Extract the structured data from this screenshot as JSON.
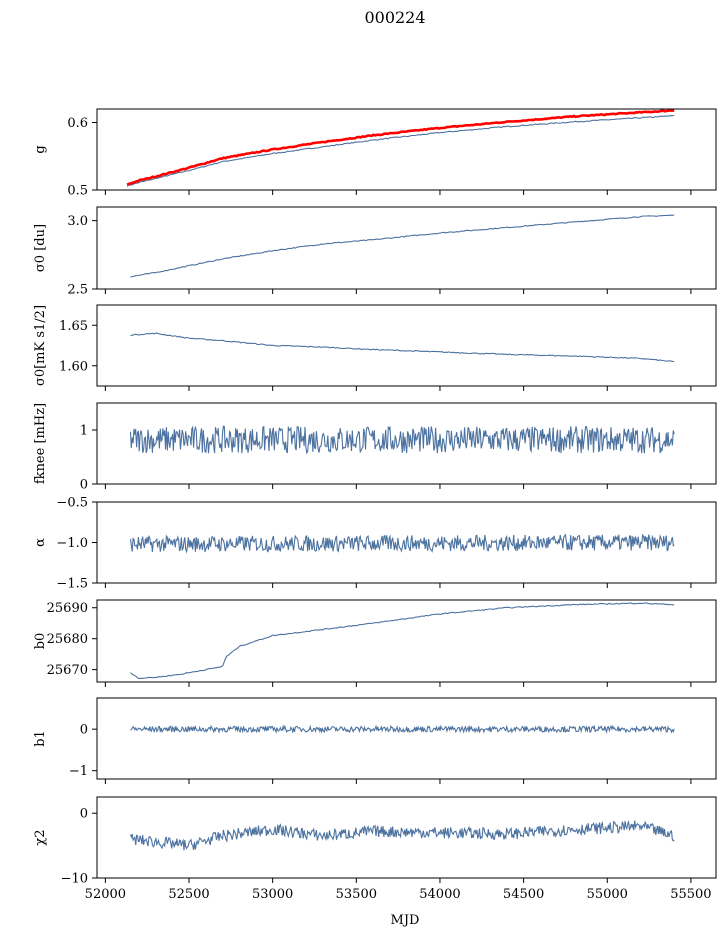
{
  "figure": {
    "title": "000224",
    "xlabel": "MJD",
    "series_color": "#4c72a0",
    "reference_color": "#ff0000"
  },
  "chart_data": [
    {
      "type": "line",
      "ylabel": "g",
      "xlim": [
        51950,
        55650
      ],
      "ylim": [
        0.5,
        0.62
      ],
      "yticks": [
        0.5,
        0.6
      ],
      "ytick_labels": [
        "0.5",
        "0.6"
      ],
      "series": [
        {
          "x": [
            52130,
            52200,
            52300,
            52500,
            52700,
            53000,
            53300,
            53600,
            54000,
            54400,
            54800,
            55200,
            55400
          ],
          "y": [
            0.506,
            0.511,
            0.517,
            0.529,
            0.542,
            0.554,
            0.564,
            0.574,
            0.585,
            0.594,
            0.601,
            0.607,
            0.61
          ]
        },
        {
          "x": [
            52130,
            52200,
            52300,
            52500,
            52700,
            53000,
            53300,
            53600,
            54000,
            54400,
            54800,
            55200,
            55400
          ],
          "y": [
            0.508,
            0.514,
            0.52,
            0.533,
            0.547,
            0.56,
            0.571,
            0.581,
            0.592,
            0.601,
            0.609,
            0.615,
            0.618
          ]
        }
      ]
    },
    {
      "type": "line",
      "ylabel": "σ0 [du]",
      "xlim": [
        51950,
        55650
      ],
      "ylim": [
        2.5,
        3.1
      ],
      "yticks": [
        2.5,
        3.0
      ],
      "ytick_labels": [
        "2.5",
        "3.0"
      ],
      "series": [
        {
          "x": [
            52150,
            52300,
            52500,
            52700,
            53000,
            53300,
            53600,
            54000,
            54400,
            54800,
            55200,
            55400
          ],
          "y": [
            2.59,
            2.62,
            2.67,
            2.72,
            2.78,
            2.83,
            2.86,
            2.91,
            2.95,
            2.99,
            3.03,
            3.04
          ]
        }
      ]
    },
    {
      "type": "line",
      "ylabel": "σ0[mK s1/2]",
      "xlim": [
        51950,
        55650
      ],
      "ylim": [
        1.575,
        1.675
      ],
      "yticks": [
        1.6,
        1.65
      ],
      "ytick_labels": [
        "1.60",
        "1.65"
      ],
      "series": [
        {
          "x": [
            52150,
            52300,
            52500,
            52700,
            53000,
            53300,
            53600,
            54000,
            54400,
            54800,
            55200,
            55400
          ],
          "y": [
            1.638,
            1.64,
            1.634,
            1.631,
            1.625,
            1.623,
            1.62,
            1.617,
            1.614,
            1.612,
            1.609,
            1.605
          ]
        }
      ]
    },
    {
      "type": "line",
      "ylabel": "fknee [mHz]",
      "xlim": [
        51950,
        55650
      ],
      "ylim": [
        0,
        1.5
      ],
      "yticks": [
        0,
        1
      ],
      "ytick_labels": [
        "0",
        "1"
      ],
      "series": [
        {
          "x": [
            52150,
            55400
          ],
          "y": [
            0.82,
            0.82
          ],
          "noise": 0.25
        }
      ]
    },
    {
      "type": "line",
      "ylabel": "α",
      "xlim": [
        51950,
        55650
      ],
      "ylim": [
        -1.5,
        -0.5
      ],
      "yticks": [
        -1.5,
        -1.0,
        -0.5
      ],
      "ytick_labels": [
        "−1.5",
        "−1.0",
        "−0.5"
      ],
      "series": [
        {
          "x": [
            52150,
            55400
          ],
          "y": [
            -1.02,
            -1.0
          ],
          "noise": 0.1
        }
      ]
    },
    {
      "type": "line",
      "ylabel": "b0",
      "xlim": [
        51950,
        55650
      ],
      "ylim": [
        25666,
        25692.5
      ],
      "yticks": [
        25670,
        25680,
        25690
      ],
      "ytick_labels": [
        "25670",
        "25680",
        "25690"
      ],
      "series": [
        {
          "x": [
            52150,
            52200,
            52300,
            52450,
            52600,
            52700,
            52720,
            52800,
            53000,
            53300,
            53600,
            54000,
            54400,
            54800,
            55200,
            55400
          ],
          "y": [
            25669,
            25667.2,
            25667.5,
            25668.5,
            25670,
            25671,
            25674,
            25677.5,
            25681,
            25683,
            25685,
            25688,
            25690,
            25691,
            25691.5,
            25691
          ]
        }
      ]
    },
    {
      "type": "line",
      "ylabel": "b1",
      "xlim": [
        51950,
        55650
      ],
      "ylim": [
        -1.2,
        0.75
      ],
      "yticks": [
        -1,
        0
      ],
      "ytick_labels": [
        "−1",
        "0"
      ],
      "series": [
        {
          "x": [
            52150,
            55400
          ],
          "y": [
            0,
            0
          ],
          "noise": 0.07
        }
      ]
    },
    {
      "type": "line",
      "ylabel": "χ2",
      "xlim": [
        51950,
        55650
      ],
      "ylim": [
        -10,
        2.5
      ],
      "yticks": [
        -10,
        0
      ],
      "ytick_labels": [
        "−10",
        "0"
      ],
      "series": [
        {
          "x": [
            52150,
            52500,
            52700,
            53000,
            53300,
            53600,
            54000,
            54400,
            54800,
            55200,
            55400
          ],
          "y": [
            -4,
            -5,
            -3.5,
            -2.5,
            -3.5,
            -2.8,
            -3,
            -3.2,
            -2.5,
            -2,
            -3.5
          ],
          "noise": 0.9
        }
      ]
    }
  ],
  "xaxis": {
    "ticks": [
      52000,
      52500,
      53000,
      53500,
      54000,
      54500,
      55000,
      55500
    ],
    "tick_labels": [
      "52000",
      "52500",
      "53000",
      "53500",
      "54000",
      "54500",
      "55000",
      "55500"
    ]
  }
}
